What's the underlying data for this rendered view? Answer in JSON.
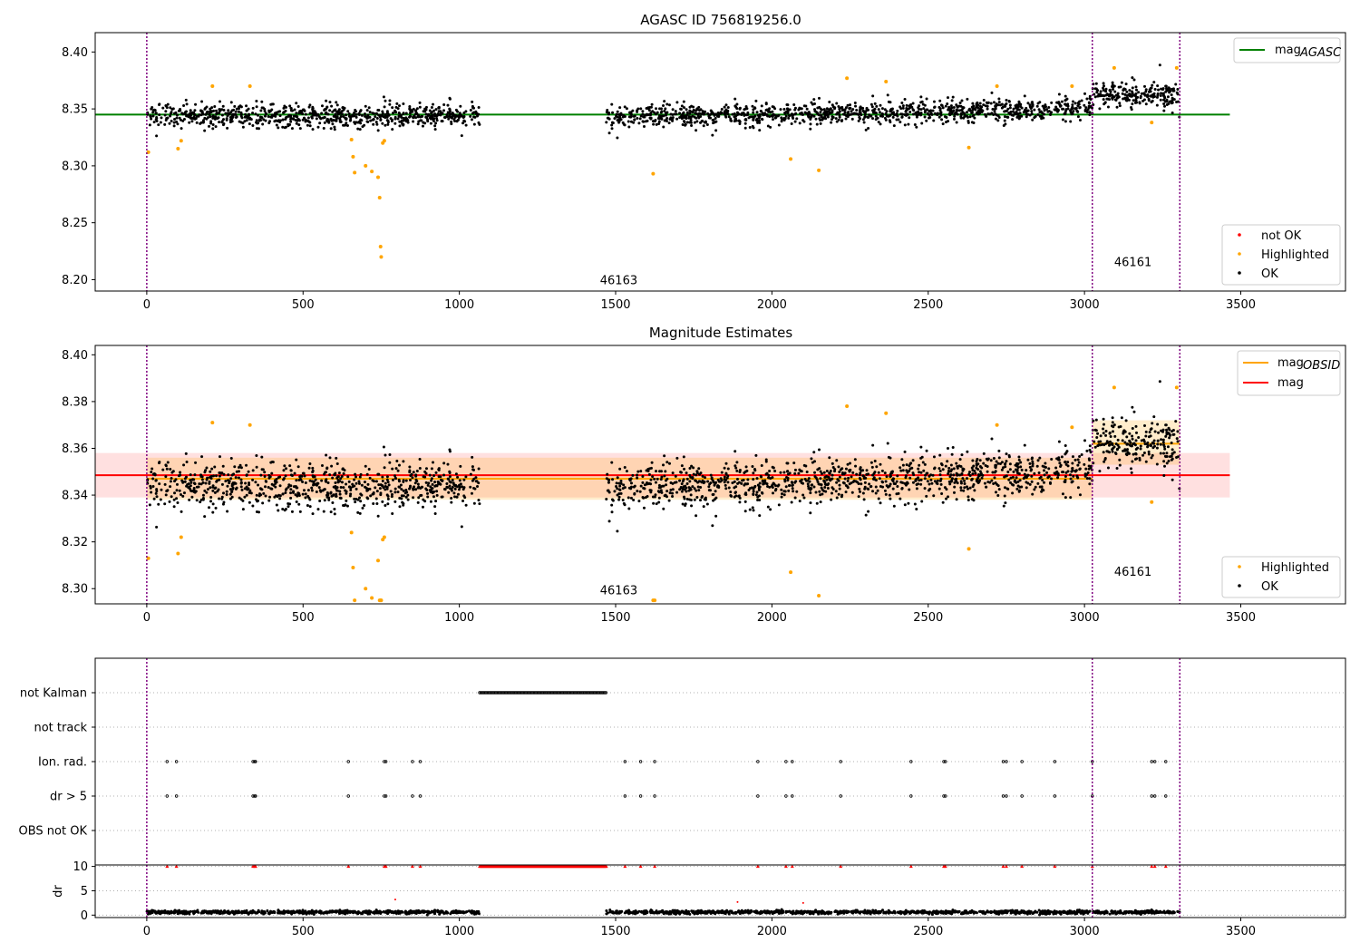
{
  "chart_data": [
    {
      "type": "scatter",
      "title": "AGASC ID 756819256.0",
      "xlim": [
        -165,
        3835
      ],
      "ylim": [
        8.19,
        8.417
      ],
      "x_ticks": [
        "0",
        "500",
        "1000",
        "1500",
        "2000",
        "2500",
        "3000",
        "3500"
      ],
      "y_ticks": [
        "8.20",
        "8.25",
        "8.30",
        "8.35",
        "8.40"
      ],
      "obsid_boundaries": [
        0,
        3025,
        3305
      ],
      "obsid_labels": [
        {
          "text": "46163",
          "x": 1510,
          "y": 8.196
        },
        {
          "text": "46161",
          "x": 3155,
          "y": 8.212
        }
      ],
      "lines": [
        {
          "name": "mag_AGASC",
          "label_main": "mag",
          "label_sub": "AGASC",
          "color": "#008000",
          "x": [
            -165,
            3465
          ],
          "y": [
            8.345,
            8.345
          ]
        }
      ],
      "series": [
        {
          "name": "not OK",
          "color": "#ff0000"
        },
        {
          "name": "Highlighted",
          "color": "#ffa500"
        },
        {
          "name": "OK",
          "color": "#000000"
        }
      ],
      "ok_segments": [
        {
          "x0": 0,
          "x1": 1065,
          "center": 8.344,
          "spread": 0.012,
          "count": 780
        },
        {
          "x0": 1470,
          "x1": 3025,
          "center_start": 8.342,
          "center_end": 8.351,
          "spread": 0.011,
          "count": 1100
        },
        {
          "x0": 3025,
          "x1": 3305,
          "center": 8.363,
          "spread": 0.012,
          "count": 220
        }
      ],
      "highlighted_points": [
        [
          5,
          8.312
        ],
        [
          100,
          8.315
        ],
        [
          110,
          8.322
        ],
        [
          210,
          8.37
        ],
        [
          330,
          8.37
        ],
        [
          655,
          8.323
        ],
        [
          660,
          8.308
        ],
        [
          665,
          8.294
        ],
        [
          700,
          8.3
        ],
        [
          720,
          8.295
        ],
        [
          740,
          8.29
        ],
        [
          745,
          8.272
        ],
        [
          748,
          8.229
        ],
        [
          750,
          8.22
        ],
        [
          755,
          8.32
        ],
        [
          760,
          8.322
        ],
        [
          1620,
          8.293
        ],
        [
          2060,
          8.306
        ],
        [
          2150,
          8.296
        ],
        [
          2240,
          8.377
        ],
        [
          2365,
          8.374
        ],
        [
          2630,
          8.316
        ],
        [
          2720,
          8.37
        ],
        [
          2960,
          8.37
        ],
        [
          3095,
          8.386
        ],
        [
          3215,
          8.338
        ],
        [
          3295,
          8.386
        ]
      ],
      "legends": [
        "mag_AGASC",
        "not OK",
        "Highlighted",
        "OK"
      ]
    },
    {
      "type": "scatter",
      "title": "Magnitude Estimates",
      "xlim": [
        -165,
        3835
      ],
      "ylim": [
        8.2935,
        8.404
      ],
      "x_ticks": [
        "0",
        "500",
        "1000",
        "1500",
        "2000",
        "2500",
        "3000",
        "3500"
      ],
      "y_ticks": [
        "8.30",
        "8.32",
        "8.34",
        "8.36",
        "8.38",
        "8.40"
      ],
      "obsid_boundaries": [
        0,
        3025,
        3305
      ],
      "obsid_labels": [
        {
          "text": "46163",
          "x": 1510,
          "y": 8.2975
        },
        {
          "text": "46161",
          "x": 3155,
          "y": 8.3055
        }
      ],
      "bands": [
        {
          "name": "mag",
          "color": "#ff0000",
          "opacity": 0.12,
          "x": [
            -165,
            3465
          ],
          "y": [
            8.339,
            8.358
          ]
        },
        {
          "name": "mag_OBSID 46163",
          "color": "#ffa500",
          "opacity": 0.2,
          "x": [
            0,
            3025
          ],
          "y": [
            8.338,
            8.356
          ]
        },
        {
          "name": "mag_OBSID 46161",
          "color": "#ffa500",
          "opacity": 0.2,
          "x": [
            3025,
            3305
          ],
          "y": [
            8.353,
            8.372
          ]
        }
      ],
      "lines": [
        {
          "name": "mag_OBSID",
          "label_main": "mag",
          "label_sub": "OBSID",
          "color": "#ffa500",
          "x": [
            0,
            3025
          ],
          "y": [
            8.347,
            8.347
          ]
        },
        {
          "name": "mag_OBSID",
          "label_main": "",
          "label_sub": "",
          "color": "#ffa500",
          "x": [
            3025,
            3305
          ],
          "y": [
            8.362,
            8.362
          ]
        },
        {
          "name": "mag",
          "label_main": "mag",
          "label_sub": "",
          "color": "#ff0000",
          "x": [
            -165,
            3465
          ],
          "y": [
            8.3485,
            8.3485
          ]
        }
      ],
      "series": [
        {
          "name": "Highlighted",
          "color": "#ffa500"
        },
        {
          "name": "OK",
          "color": "#000000"
        }
      ],
      "ok_segments": [
        {
          "x0": 0,
          "x1": 1065,
          "center": 8.344,
          "spread": 0.012,
          "count": 780
        },
        {
          "x0": 1470,
          "x1": 3025,
          "center_start": 8.342,
          "center_end": 8.351,
          "spread": 0.011,
          "count": 1100
        },
        {
          "x0": 3025,
          "x1": 3305,
          "center": 8.363,
          "spread": 0.012,
          "count": 220
        }
      ],
      "highlighted_points": [
        [
          5,
          8.313
        ],
        [
          100,
          8.315
        ],
        [
          110,
          8.322
        ],
        [
          210,
          8.371
        ],
        [
          330,
          8.37
        ],
        [
          655,
          8.324
        ],
        [
          660,
          8.309
        ],
        [
          665,
          8.295
        ],
        [
          700,
          8.3
        ],
        [
          720,
          8.296
        ],
        [
          740,
          8.312
        ],
        [
          745,
          8.295
        ],
        [
          748,
          8.295
        ],
        [
          750,
          8.295
        ],
        [
          755,
          8.321
        ],
        [
          760,
          8.322
        ],
        [
          1620,
          8.295
        ],
        [
          1625,
          8.295
        ],
        [
          2060,
          8.307
        ],
        [
          2150,
          8.297
        ],
        [
          2240,
          8.378
        ],
        [
          2365,
          8.375
        ],
        [
          2630,
          8.317
        ],
        [
          2720,
          8.37
        ],
        [
          2960,
          8.369
        ],
        [
          3095,
          8.386
        ],
        [
          3215,
          8.337
        ],
        [
          3295,
          8.386
        ]
      ],
      "legends": [
        "mag_OBSID",
        "mag",
        "Highlighted",
        "OK"
      ]
    },
    {
      "type": "scatter",
      "title": "",
      "xlim": [
        -165,
        3835
      ],
      "categories": [
        "not Kalman",
        "not track",
        "Ion. rad.",
        "dr > 5",
        "OBS not OK"
      ],
      "obsid_boundaries": [
        0,
        3025,
        3305
      ],
      "not_kalman_range": [
        1065,
        1470
      ],
      "ion_rad_times": [
        65,
        95,
        340,
        345,
        348,
        645,
        760,
        765,
        850,
        875,
        1530,
        1580,
        1625,
        1955,
        2045,
        2065,
        2220,
        2445,
        2550,
        2555,
        2740,
        2750,
        2800,
        2905,
        3025,
        3215,
        3225,
        3260
      ],
      "dr_gt5_times": [
        65,
        95,
        340,
        345,
        348,
        645,
        760,
        765,
        850,
        875,
        1530,
        1580,
        1625,
        1955,
        2045,
        2065,
        2220,
        2445,
        2550,
        2555,
        2740,
        2750,
        2800,
        2905,
        3025,
        3215,
        3225,
        3260
      ]
    },
    {
      "type": "scatter",
      "title": "",
      "ylabel": "dr",
      "xlim": [
        -165,
        3835
      ],
      "ylim": [
        -0.5,
        10.3
      ],
      "x_ticks": [
        "0",
        "500",
        "1000",
        "1500",
        "2000",
        "2500",
        "3000",
        "3500"
      ],
      "y_ticks": [
        "0",
        "5",
        "10"
      ],
      "obsid_boundaries": [
        0,
        3025,
        3305
      ],
      "clipped_value": 10,
      "clipped_times": [
        65,
        95,
        340,
        345,
        348,
        645,
        760,
        765,
        850,
        875,
        1530,
        1580,
        1625,
        1955,
        2045,
        2065,
        2220,
        2445,
        2550,
        2555,
        2740,
        2750,
        2800,
        2905,
        3025,
        3215,
        3225,
        3260
      ],
      "dr_segments": [
        {
          "x0": 0,
          "x1": 1065,
          "center": 0.6,
          "spread": 0.35,
          "count": 700
        },
        {
          "x0": 1470,
          "x1": 3305,
          "center": 0.6,
          "spread": 0.35,
          "count": 1100
        }
      ],
      "outliers": [
        [
          795,
          3.2
        ],
        [
          1890,
          2.7
        ],
        [
          2100,
          2.5
        ]
      ]
    }
  ]
}
